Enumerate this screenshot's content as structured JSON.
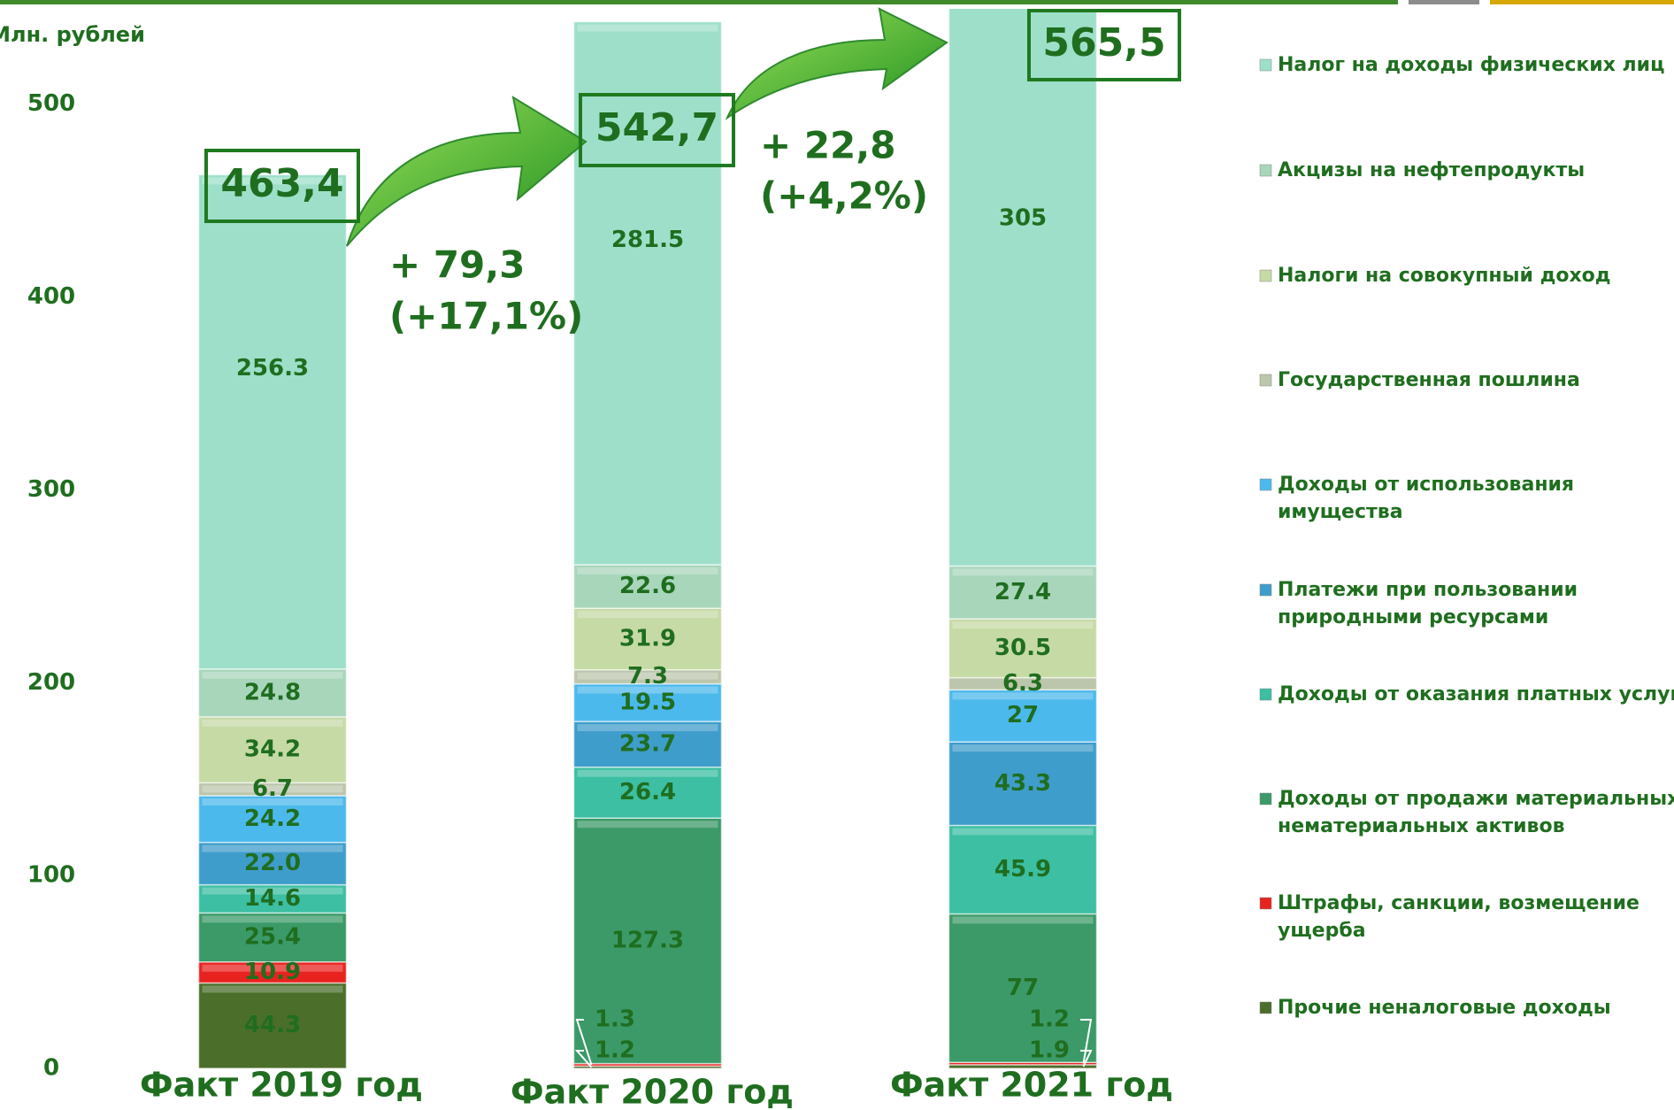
{
  "chart_data": {
    "type": "stacked_bar",
    "ylabel": "Млн. рублей",
    "categories": [
      "Факт 2019 год",
      "Факт 2020 год",
      "Факт 2021 год"
    ],
    "ylim": [
      0,
      554
    ],
    "yticks": [
      0,
      100,
      200,
      300,
      400,
      500
    ],
    "series": [
      {
        "name": "Прочие неналоговые доходы",
        "color": "#4b6e2a",
        "values": [
          44.3,
          1.2,
          1.9
        ]
      },
      {
        "name": "Штрафы, санкции, возмещение ущерба",
        "color": "#e8231f",
        "values": [
          10.9,
          1.3,
          1.2
        ]
      },
      {
        "name": "Доходы от продажи материальных и нематериальных активов",
        "color": "#3b9a68",
        "values": [
          25.4,
          127.3,
          77
        ]
      },
      {
        "name": "Доходы от оказания платных услуг",
        "color": "#3cbfa2",
        "values": [
          14.6,
          26.4,
          45.9
        ]
      },
      {
        "name": "Платежи при пользовании природными ресурсами",
        "color": "#3f9dcb",
        "values": [
          22.0,
          23.7,
          43.3
        ],
        "value_labels": [
          "22.0",
          "23.7",
          "43.3"
        ]
      },
      {
        "name": "Доходы от использования имущества",
        "color": "#4cb9ec",
        "values": [
          24.2,
          19.5,
          27
        ]
      },
      {
        "name": "Государственная пошлина",
        "color": "#bcc6ac",
        "values": [
          6.7,
          7.3,
          6.3
        ]
      },
      {
        "name": "Налоги на совокупный доход",
        "color": "#c6daa6",
        "values": [
          34.2,
          31.9,
          30.5
        ]
      },
      {
        "name": "Акцизы на нефтепродукты",
        "color": "#a8d6bb",
        "values": [
          24.8,
          22.6,
          27.4
        ]
      },
      {
        "name": "Налог на доходы физических лиц",
        "color": "#9edfca",
        "values": [
          256.3,
          281.5,
          305
        ]
      }
    ],
    "totals": [
      "463,4",
      "542,7",
      "565,5"
    ],
    "changes": [
      [
        "+ 79,3",
        "(+17,1%)"
      ],
      [
        "+ 22,8",
        "(+4,2%)"
      ]
    ]
  }
}
